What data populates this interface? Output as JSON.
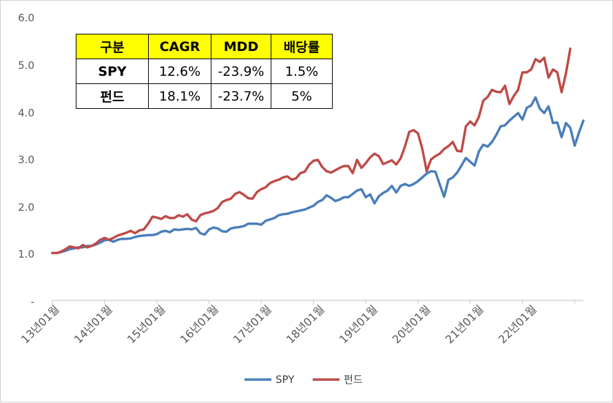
{
  "chart_data": {
    "type": "line",
    "title": "",
    "xlabel": "",
    "ylabel": "",
    "ylim": [
      0,
      6
    ],
    "y_ticks": [
      "-",
      "1.0",
      "2.0",
      "3.0",
      "4.0",
      "5.0",
      "6.0"
    ],
    "x_tick_labels": [
      "13년01월",
      "14년01월",
      "15년01월",
      "16년01월",
      "17년01월",
      "18년01월",
      "19년01월",
      "20년01월",
      "21년01월",
      "22년01월"
    ],
    "x_start": "2013-01",
    "points_per_year": 12,
    "legend_position": "bottom",
    "series": [
      {
        "name": "SPY",
        "color": "#4a7ebb",
        "values": [
          1.0,
          1.0,
          1.02,
          1.05,
          1.08,
          1.1,
          1.12,
          1.12,
          1.15,
          1.15,
          1.18,
          1.22,
          1.27,
          1.28,
          1.24,
          1.28,
          1.3,
          1.3,
          1.31,
          1.34,
          1.36,
          1.37,
          1.38,
          1.38,
          1.4,
          1.45,
          1.47,
          1.44,
          1.5,
          1.49,
          1.5,
          1.51,
          1.5,
          1.53,
          1.42,
          1.39,
          1.5,
          1.54,
          1.52,
          1.46,
          1.45,
          1.52,
          1.54,
          1.55,
          1.57,
          1.62,
          1.62,
          1.62,
          1.6,
          1.68,
          1.71,
          1.74,
          1.8,
          1.82,
          1.83,
          1.86,
          1.88,
          1.9,
          1.92,
          1.96,
          2.0,
          2.08,
          2.12,
          2.22,
          2.17,
          2.1,
          2.13,
          2.18,
          2.18,
          2.25,
          2.32,
          2.35,
          2.18,
          2.24,
          2.05,
          2.2,
          2.27,
          2.32,
          2.42,
          2.28,
          2.42,
          2.46,
          2.42,
          2.46,
          2.52,
          2.6,
          2.68,
          2.73,
          2.72,
          2.45,
          2.19,
          2.55,
          2.6,
          2.7,
          2.85,
          3.01,
          2.93,
          2.85,
          3.15,
          3.29,
          3.25,
          3.35,
          3.5,
          3.68,
          3.7,
          3.8,
          3.88,
          3.96,
          3.82,
          4.07,
          4.12,
          4.29,
          4.05,
          3.96,
          4.1,
          3.75,
          3.76,
          3.45,
          3.75,
          3.65,
          3.27,
          3.55,
          3.8
        ]
      },
      {
        "name": "펀드",
        "color": "#be4b48",
        "values": [
          1.0,
          1.0,
          1.03,
          1.08,
          1.14,
          1.12,
          1.1,
          1.17,
          1.12,
          1.15,
          1.2,
          1.28,
          1.32,
          1.28,
          1.32,
          1.37,
          1.4,
          1.43,
          1.47,
          1.42,
          1.48,
          1.5,
          1.62,
          1.77,
          1.75,
          1.72,
          1.78,
          1.74,
          1.74,
          1.8,
          1.77,
          1.82,
          1.71,
          1.67,
          1.8,
          1.84,
          1.86,
          1.89,
          1.95,
          2.08,
          2.12,
          2.15,
          2.25,
          2.29,
          2.23,
          2.16,
          2.15,
          2.29,
          2.35,
          2.39,
          2.48,
          2.52,
          2.55,
          2.6,
          2.62,
          2.55,
          2.58,
          2.69,
          2.72,
          2.87,
          2.95,
          2.97,
          2.82,
          2.73,
          2.7,
          2.75,
          2.8,
          2.84,
          2.84,
          2.69,
          2.97,
          2.8,
          2.9,
          3.02,
          3.1,
          3.05,
          2.88,
          2.92,
          2.96,
          2.87,
          3.0,
          3.25,
          3.56,
          3.6,
          3.53,
          3.2,
          2.73,
          2.98,
          3.05,
          3.1,
          3.2,
          3.26,
          3.35,
          3.16,
          3.15,
          3.68,
          3.78,
          3.7,
          3.88,
          4.22,
          4.3,
          4.45,
          4.41,
          4.4,
          4.54,
          4.15,
          4.32,
          4.45,
          4.82,
          4.82,
          4.88,
          5.1,
          5.04,
          5.13,
          4.71,
          4.88,
          4.82,
          4.4,
          4.8,
          5.32
        ]
      }
    ]
  },
  "table": {
    "headers": [
      "구분",
      "CAGR",
      "MDD",
      "배당률"
    ],
    "rows": [
      [
        "SPY",
        "12.6%",
        "-23.9%",
        "1.5%"
      ],
      [
        "펀드",
        "18.1%",
        "-23.7%",
        "5%"
      ]
    ]
  }
}
